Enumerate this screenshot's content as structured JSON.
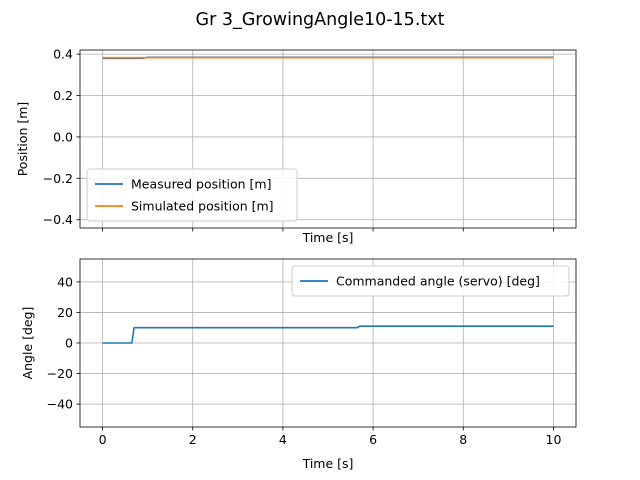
{
  "figure": {
    "title": "Gr 3_GrowingAngle10-15.txt"
  },
  "colors": {
    "series_blue": "#1f77b4",
    "series_orange": "#ff7f0e",
    "grid": "#b0b0b0",
    "legend_border": "#cccccc"
  },
  "chart_data": [
    {
      "type": "line",
      "title": "",
      "xlabel": "Time [s]",
      "ylabel": "Position [m]",
      "xlim": [
        -0.5,
        10.5
      ],
      "ylim": [
        -0.44,
        0.42
      ],
      "xticks": [
        0,
        2,
        4,
        6,
        8,
        10
      ],
      "xtick_labels_visible": false,
      "yticks": [
        -0.4,
        -0.2,
        0.0,
        0.2,
        0.4
      ],
      "ytick_labels": [
        "−0.4",
        "−0.2",
        "0.0",
        "0.2",
        "0.4"
      ],
      "grid": true,
      "legend_location": "lower-left",
      "series": [
        {
          "name": "Measured position [m]",
          "color": "#1f77b4",
          "x": [
            0,
            0.9,
            1.0,
            10
          ],
          "y": [
            0.38,
            0.38,
            0.385,
            0.385
          ]
        },
        {
          "name": "Simulated position [m]",
          "color": "#ff7f0e",
          "x": [
            0,
            10
          ],
          "y": [
            0.383,
            0.383
          ]
        }
      ]
    },
    {
      "type": "line",
      "title": "",
      "xlabel": "Time [s]",
      "ylabel": "Angle [deg]",
      "xlim": [
        -0.5,
        10.5
      ],
      "ylim": [
        -55,
        55
      ],
      "xticks": [
        0,
        2,
        4,
        6,
        8,
        10
      ],
      "xtick_labels": [
        "0",
        "2",
        "4",
        "6",
        "8",
        "10"
      ],
      "xtick_labels_visible": true,
      "yticks": [
        -40,
        -20,
        0,
        20,
        40
      ],
      "ytick_labels": [
        "−40",
        "−20",
        "0",
        "20",
        "40"
      ],
      "grid": true,
      "legend_location": "upper-right",
      "series": [
        {
          "name": "Commanded angle (servo) [deg]",
          "color": "#1f77b4",
          "x": [
            0,
            0.65,
            0.7,
            5.65,
            5.7,
            10
          ],
          "y": [
            0,
            0,
            10,
            10,
            11,
            11
          ]
        }
      ]
    }
  ]
}
